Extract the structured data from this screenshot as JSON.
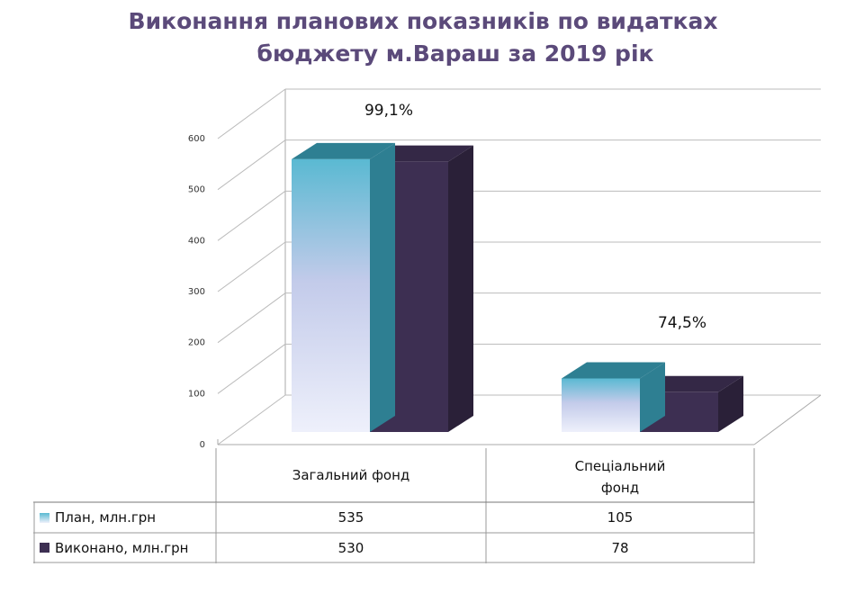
{
  "title_line1": "Виконання планових показників по видатках",
  "title_line2": "бюджету м.Вараш за 2019 рік",
  "chart_data": {
    "type": "bar",
    "categories": [
      "Загальний  фонд",
      "Спеціальний фонд"
    ],
    "category_lines": [
      [
        "Загальний  фонд"
      ],
      [
        "Спеціальний",
        "фонд"
      ]
    ],
    "series": [
      {
        "name": "План, млн.грн",
        "values": [
          535,
          105
        ],
        "display": [
          "535",
          "105"
        ],
        "colors": {
          "top": "#2e7f92",
          "bottom": "#eef0fb",
          "mid": "#c3cbea",
          "upper": "#5ab9d2"
        }
      },
      {
        "name": "Виконано, млн.грн",
        "values": [
          530,
          78
        ],
        "display": [
          "530",
          "78"
        ],
        "colors": {
          "front": "#3d2f52",
          "side": "#2a2038",
          "top": "#342846"
        }
      }
    ],
    "annotations": [
      "99,1%",
      "74,5%"
    ],
    "ylim": [
      0,
      600
    ],
    "yticks": [
      0,
      100,
      200,
      300,
      400,
      500,
      600
    ],
    "grid": true,
    "legend": "data-table"
  }
}
